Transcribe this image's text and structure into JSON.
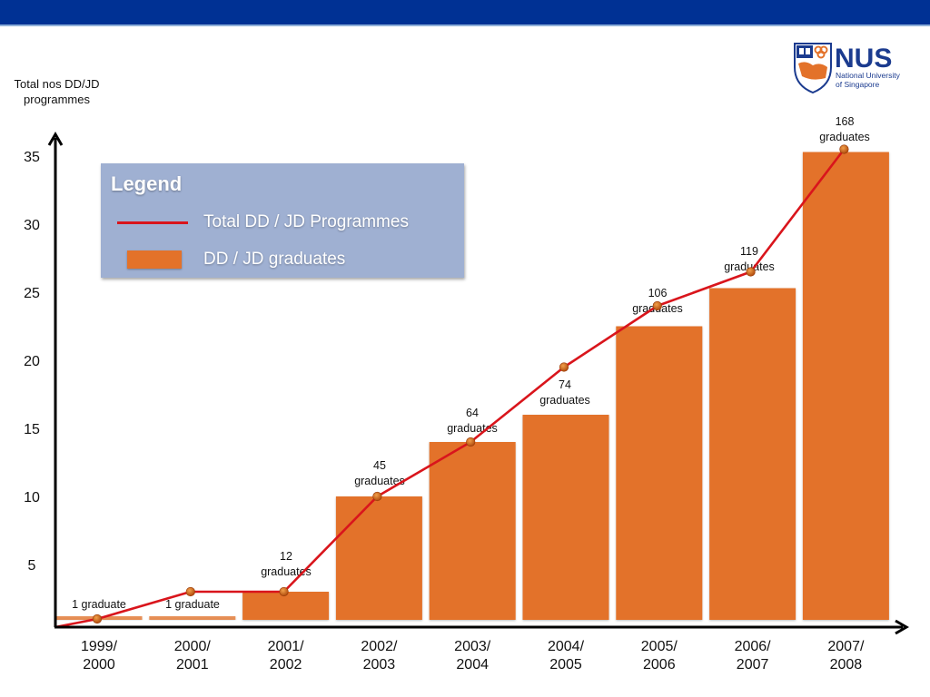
{
  "header": {
    "brand_color": "#003194"
  },
  "logo": {
    "wordmark": "NUS",
    "line1": "National University",
    "line2": "of Singapore"
  },
  "legend": {
    "title": "Legend",
    "items": [
      {
        "label": "Total DD / JD Programmes",
        "kind": "line",
        "color": "#d9151c"
      },
      {
        "label": "DD / JD graduates",
        "kind": "bar",
        "color": "#e3722a"
      }
    ]
  },
  "chart_data": {
    "type": "bar",
    "title": "",
    "ylabel": "Total nos DD/JD programmes",
    "xlabel": "",
    "ylim": [
      0,
      36
    ],
    "yticks": [
      5,
      10,
      15,
      20,
      25,
      30,
      35
    ],
    "categories": [
      [
        "1999/",
        "2000"
      ],
      [
        "2000/",
        "2001"
      ],
      [
        "2001/",
        "2002"
      ],
      [
        "2002/",
        "2003"
      ],
      [
        "2003/",
        "2004"
      ],
      [
        "2004/",
        "2005"
      ],
      [
        "2005/",
        "2006"
      ],
      [
        "2006/",
        "2007"
      ],
      [
        "2007/",
        "2008"
      ]
    ],
    "series": [
      {
        "name": "Total DD / JD Programmes",
        "type": "line",
        "color": "#d9151c",
        "origin": 0,
        "values": [
          1,
          3,
          3,
          10,
          14,
          19.5,
          24,
          26.5,
          35.5
        ]
      },
      {
        "name": "DD / JD graduates",
        "type": "bar",
        "color": "#e3722a",
        "values": [
          1,
          1,
          12,
          45,
          64,
          74,
          106,
          119,
          168
        ],
        "axis_level": [
          1,
          1,
          3,
          10,
          14,
          16,
          22.5,
          25.3,
          35.3
        ],
        "labels": [
          [
            "1 graduate"
          ],
          [
            "1 graduate"
          ],
          [
            "12",
            "graduates"
          ],
          [
            "45",
            "graduates"
          ],
          [
            "64",
            "graduates"
          ],
          [
            "74",
            "graduates"
          ],
          [
            "106",
            "graduates"
          ],
          [
            "119",
            "graduates"
          ],
          [
            "168",
            "graduates"
          ]
        ]
      }
    ],
    "grid": false,
    "legend_position": "top-left"
  }
}
